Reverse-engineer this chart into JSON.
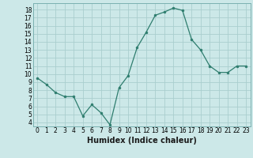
{
  "x": [
    0,
    1,
    2,
    3,
    4,
    5,
    6,
    7,
    8,
    9,
    10,
    11,
    12,
    13,
    14,
    15,
    16,
    17,
    18,
    19,
    20,
    21,
    22,
    23
  ],
  "y": [
    9.5,
    8.7,
    7.7,
    7.2,
    7.2,
    4.8,
    6.2,
    5.2,
    3.7,
    8.3,
    9.8,
    13.3,
    15.2,
    17.3,
    17.7,
    18.2,
    17.9,
    14.3,
    13.0,
    11.0,
    10.2,
    10.2,
    11.0,
    11.0
  ],
  "xlabel": "Humidex (Indice chaleur)",
  "bg_color": "#cce8e8",
  "line_color": "#2e7d6e",
  "marker_color": "#2e7d6e",
  "grid_color": "#aacece",
  "yticks": [
    4,
    5,
    6,
    7,
    8,
    9,
    10,
    11,
    12,
    13,
    14,
    15,
    16,
    17,
    18
  ],
  "xticks": [
    0,
    1,
    2,
    3,
    4,
    5,
    6,
    7,
    8,
    9,
    10,
    11,
    12,
    13,
    14,
    15,
    16,
    17,
    18,
    19,
    20,
    21,
    22,
    23
  ],
  "ylim": [
    3.5,
    18.8
  ],
  "xlim": [
    -0.5,
    23.5
  ],
  "tick_fontsize": 5.5,
  "xlabel_fontsize": 7
}
